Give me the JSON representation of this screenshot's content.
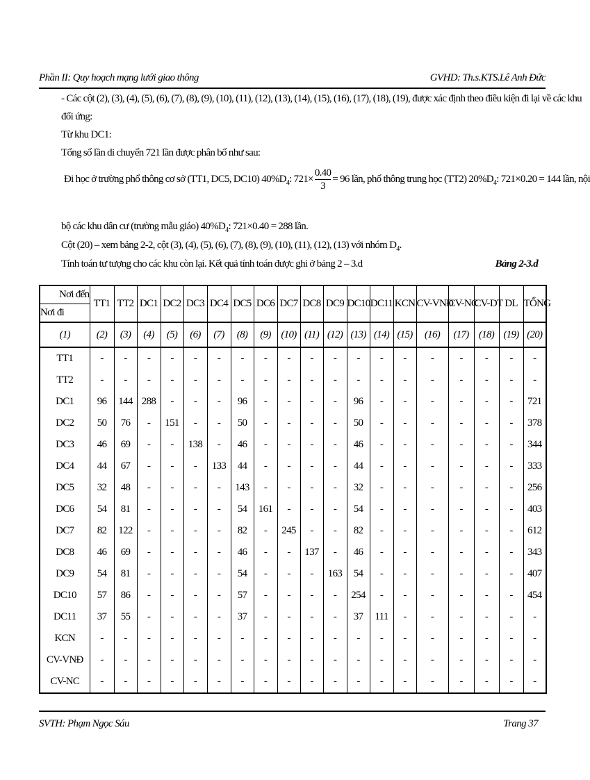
{
  "header": {
    "left": "Phần II: Quy hoạch mạng lưới giao thông",
    "right": "GVHD: Th.s.KTS.Lê Anh Đức"
  },
  "body": {
    "line1": "- Các cột (2), (3), (4), (5), (6), (7), (8), (9), (10), (11), (12), (13), (14), (15), (16), (17), (18), (19), được xác định theo điều kiện đi lại về các khu",
    "line2": "đối ứng:",
    "line3": "Từ khu DC1:",
    "line4": "Tổng số lần di chuyển 721 lần được phân bố như sau:",
    "line5a": "Đi học  ở trường phổ thông cơ sở (TT1, DC5, DC10)  40%D",
    "line5b": ": 721×",
    "frac_num": "0.40",
    "frac_den": "3",
    "line5c": "= 96 lần, phổ thông trung học (TT2)  20%D",
    "line5d": ":  721×0.20 = 144  lần, nội",
    "sub4": "4",
    "line6a": "bộ các khu dân cư  (trường mẫu giáo) 40%D",
    "line6b": ":  721×0.40 = 288  lần.",
    "line7a": "Cột (20) – xem bảng 2-2, cột  (3), (4), (5), (6), (7), (8), (9), (10), (11), (12), (13) với nhóm D",
    "line7b": ".",
    "line8": "Tính toán tư tượng  cho các khu còn lại. Kết quả tính toán được ghi ở bảng 2 – 3.d",
    "table_caption": "Bảng 2-3.d"
  },
  "table": {
    "corner_top": "Nơi đến",
    "corner_bottom": "Nơi đi",
    "columns": [
      "TT1",
      "TT2",
      "DC1",
      "DC2",
      "DC3",
      "DC4",
      "DC5",
      "DC6",
      "DC7",
      "DC8",
      "DC9",
      "DC10",
      "DC11",
      "KCN",
      "CV-VNĐ",
      "CV-NC",
      "CV-DT",
      "DL",
      "TỔNG"
    ],
    "numbers": [
      "(1)",
      "(2)",
      "(3)",
      "(4)",
      "(5)",
      "(6)",
      "(7)",
      "(8)",
      "(9)",
      "(10)",
      "(11)",
      "(12)",
      "(13)",
      "(14)",
      "(15)",
      "(16)",
      "(17)",
      "(18)",
      "(19)",
      "(20)"
    ],
    "rows": [
      [
        "TT1",
        "-",
        "-",
        "-",
        "-",
        "-",
        "-",
        "-",
        "-",
        "-",
        "-",
        "-",
        "-",
        "-",
        "-",
        "-",
        "-",
        "-",
        "-",
        "-"
      ],
      [
        "TT2",
        "-",
        "-",
        "-",
        "-",
        "-",
        "-",
        "-",
        "-",
        "-",
        "-",
        "-",
        "-",
        "-",
        "-",
        "-",
        "-",
        "-",
        "-",
        "-"
      ],
      [
        "DC1",
        "96",
        "144",
        "288",
        "-",
        "-",
        "-",
        "96",
        "-",
        "-",
        "-",
        "-",
        "96",
        "-",
        "-",
        "-",
        "-",
        "-",
        "-",
        "721"
      ],
      [
        "DC2",
        "50",
        "76",
        "-",
        "151",
        "-",
        "-",
        "50",
        "-",
        "-",
        "-",
        "-",
        "50",
        "-",
        "-",
        "-",
        "-",
        "-",
        "-",
        "378"
      ],
      [
        "DC3",
        "46",
        "69",
        "-",
        "-",
        "138",
        "-",
        "46",
        "-",
        "-",
        "-",
        "-",
        "46",
        "-",
        "-",
        "-",
        "-",
        "-",
        "-",
        "344"
      ],
      [
        "DC4",
        "44",
        "67",
        "-",
        "-",
        "-",
        "133",
        "44",
        "-",
        "-",
        "-",
        "-",
        "44",
        "-",
        "-",
        "-",
        "-",
        "-",
        "-",
        "333"
      ],
      [
        "DC5",
        "32",
        "48",
        "-",
        "-",
        "-",
        "-",
        "143",
        "-",
        "-",
        "-",
        "-",
        "32",
        "-",
        "-",
        "-",
        "-",
        "-",
        "-",
        "256"
      ],
      [
        "DC6",
        "54",
        "81",
        "-",
        "-",
        "-",
        "-",
        "54",
        "161",
        "-",
        "-",
        "-",
        "54",
        "-",
        "-",
        "-",
        "-",
        "-",
        "-",
        "403"
      ],
      [
        "DC7",
        "82",
        "122",
        "-",
        "-",
        "-",
        "-",
        "82",
        "-",
        "245",
        "-",
        "-",
        "82",
        "-",
        "-",
        "-",
        "-",
        "-",
        "-",
        "612"
      ],
      [
        "DC8",
        "46",
        "69",
        "-",
        "-",
        "-",
        "-",
        "46",
        "-",
        "-",
        "137",
        "-",
        "46",
        "-",
        "-",
        "-",
        "-",
        "-",
        "-",
        "343"
      ],
      [
        "DC9",
        "54",
        "81",
        "-",
        "-",
        "-",
        "-",
        "54",
        "-",
        "-",
        "-",
        "163",
        "54",
        "-",
        "-",
        "-",
        "-",
        "-",
        "-",
        "407"
      ],
      [
        "DC10",
        "57",
        "86",
        "-",
        "-",
        "-",
        "-",
        "57",
        "-",
        "-",
        "-",
        "-",
        "254",
        "-",
        "-",
        "-",
        "-",
        "-",
        "-",
        "454"
      ],
      [
        "DC11",
        "37",
        "55",
        "-",
        "-",
        "-",
        "-",
        "37",
        "-",
        "-",
        "-",
        "-",
        "37",
        "111",
        "-",
        "-",
        "-",
        "-",
        "-",
        "-"
      ],
      [
        "KCN",
        "-",
        "-",
        "-",
        "-",
        "-",
        "-",
        "-",
        "-",
        "-",
        "-",
        "-",
        "-",
        "-",
        "-",
        "-",
        "-",
        "-",
        "-",
        "-"
      ],
      [
        "CV-VNĐ",
        "-",
        "-",
        "-",
        "-",
        "-",
        "-",
        "-",
        "-",
        "-",
        "-",
        "-",
        "-",
        "-",
        "-",
        "-",
        "-",
        "-",
        "-",
        "-"
      ],
      [
        "CV-NC",
        "-",
        "-",
        "-",
        "-",
        "-",
        "-",
        "-",
        "-",
        "-",
        "-",
        "-",
        "-",
        "-",
        "-",
        "-",
        "-",
        "-",
        "-",
        "-"
      ]
    ]
  },
  "footer": {
    "left": "SVTH: Phạm Ngọc Sáu",
    "right": "Trang 37"
  }
}
